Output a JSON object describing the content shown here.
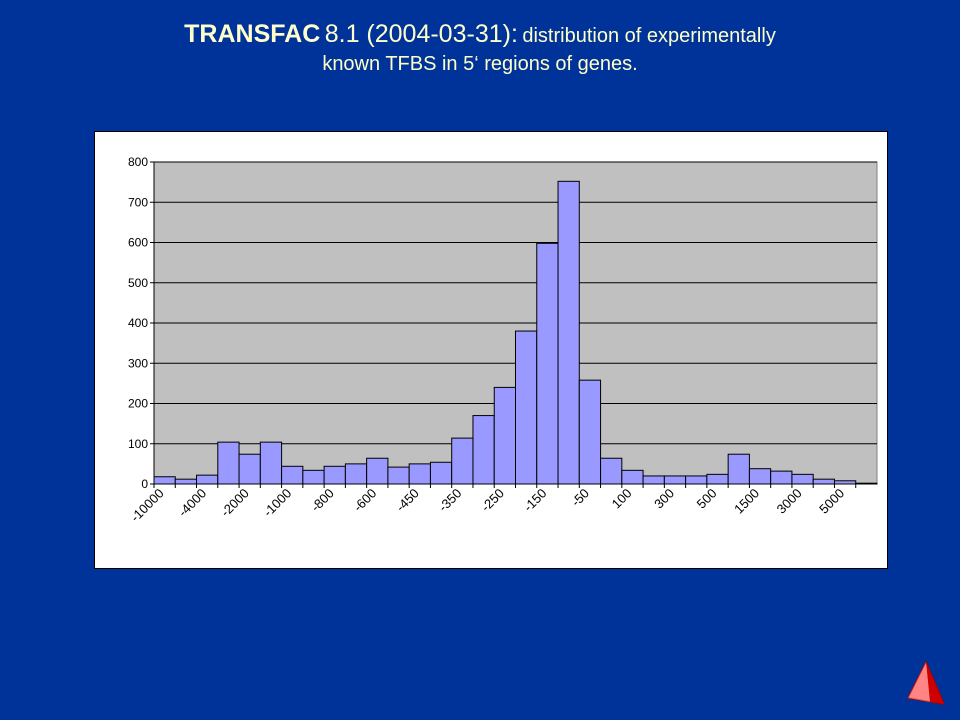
{
  "slide": {
    "title_bold": "TRANSFAC",
    "title_version": "8.1 (2004-03-31):",
    "title_rest": "distribution of experimentally",
    "title_line2": "known TFBS in 5‘ regions of genes."
  },
  "nav": {
    "icon": "triangle-nav-icon"
  },
  "colors": {
    "background": "#003399",
    "title": "#ffffcc",
    "plot_area": "#c0c0c0",
    "bar_fill": "#9999ff",
    "bar_stroke": "#000000"
  },
  "chart_data": {
    "type": "bar",
    "title": "",
    "xlabel": "",
    "ylabel": "",
    "ylim": [
      0,
      800
    ],
    "yticks": [
      0,
      100,
      200,
      300,
      400,
      500,
      600,
      700,
      800
    ],
    "grid": true,
    "legend": "none",
    "categories": [
      "-10000",
      "",
      "-4000",
      "",
      "-2000",
      "",
      "-1000",
      "",
      "-800",
      "",
      "-600",
      "",
      "-450",
      "",
      "-350",
      "",
      "-250",
      "",
      "-150",
      "",
      "-50",
      "",
      "100",
      "",
      "300",
      "",
      "500",
      "",
      "1500",
      "",
      "3000",
      "",
      "5000",
      ""
    ],
    "values": [
      18,
      12,
      22,
      104,
      74,
      104,
      44,
      34,
      44,
      50,
      64,
      42,
      50,
      54,
      114,
      170,
      240,
      380,
      598,
      752,
      258,
      64,
      34,
      20,
      20,
      20,
      24,
      74,
      38,
      32,
      24,
      12,
      8,
      2
    ]
  }
}
